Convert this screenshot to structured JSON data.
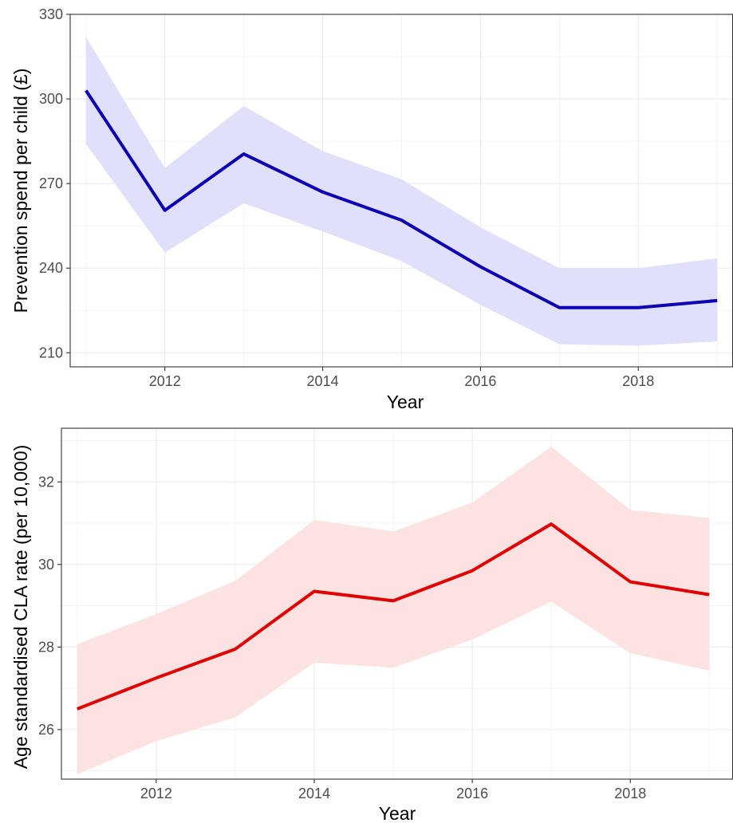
{
  "chart_data": [
    {
      "type": "line",
      "title": "",
      "xlabel": "Year",
      "ylabel": "Prevention spend per child (£)",
      "x": [
        2011,
        2012,
        2013,
        2014,
        2015,
        2016,
        2017,
        2018,
        2019
      ],
      "series": [
        {
          "values": [
            303,
            260.5,
            280.5,
            267,
            257,
            240.5,
            226,
            226,
            228.5
          ],
          "lower": [
            284,
            245.5,
            263,
            253,
            242.5,
            227,
            213,
            212.5,
            214
          ],
          "upper": [
            322,
            275.5,
            297.5,
            281.5,
            271.5,
            254.5,
            240,
            240,
            243.5
          ]
        }
      ],
      "xlim": [
        2010.8,
        2019.2
      ],
      "ylim": [
        205,
        330
      ],
      "xticks": [
        2012,
        2014,
        2016,
        2018
      ],
      "xtick_labels": [
        "2012",
        "2014",
        "2016",
        "2018"
      ],
      "yticks": [
        210,
        240,
        270,
        300,
        330
      ],
      "ytick_labels": [
        "210",
        "240",
        "270",
        "300",
        "330"
      ],
      "grid": true,
      "colors": {
        "line": "#0b00b3",
        "band": "#e1e0fb"
      }
    },
    {
      "type": "line",
      "title": "",
      "xlabel": "Year",
      "ylabel": "Age standardised CLA rate (per 10,000)",
      "x": [
        2011,
        2012,
        2013,
        2014,
        2015,
        2016,
        2017,
        2018,
        2019
      ],
      "series": [
        {
          "values": [
            26.5,
            27.25,
            27.95,
            29.35,
            29.12,
            29.85,
            30.98,
            29.58,
            29.27
          ],
          "lower": [
            24.92,
            25.72,
            26.3,
            27.62,
            27.5,
            28.18,
            29.1,
            27.85,
            27.43
          ],
          "upper": [
            28.07,
            28.8,
            29.6,
            31.08,
            30.8,
            31.5,
            32.85,
            31.32,
            31.13
          ]
        }
      ],
      "xlim": [
        2010.8,
        2019.3
      ],
      "ylim": [
        24.8,
        33.3
      ],
      "xticks": [
        2012,
        2014,
        2016,
        2018
      ],
      "xtick_labels": [
        "2012",
        "2014",
        "2016",
        "2018"
      ],
      "yticks": [
        26,
        28,
        30,
        32
      ],
      "ytick_labels": [
        "26",
        "28",
        "30",
        "32"
      ],
      "grid": true,
      "colors": {
        "line": "#e00000",
        "band": "#fde2e2"
      }
    }
  ]
}
